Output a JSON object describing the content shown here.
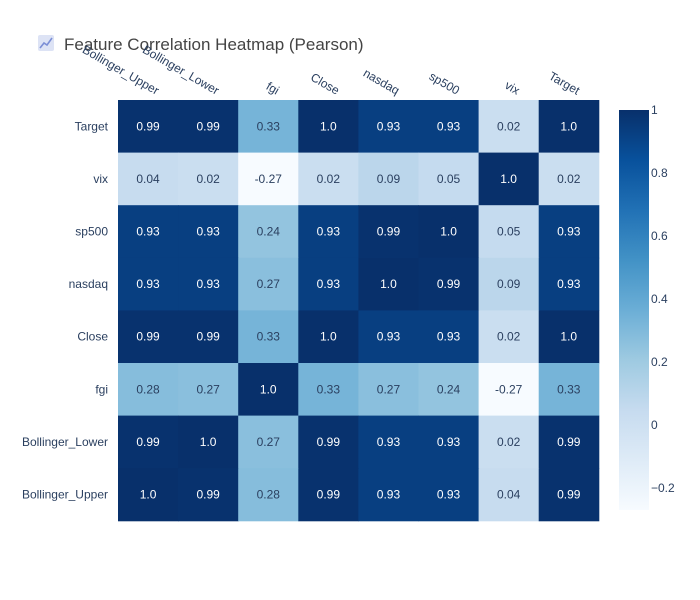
{
  "title": "Feature Correlation Heatmap (Pearson)",
  "logo_icon": "plotly-chart-icon",
  "chart_data": {
    "type": "heatmap",
    "title": "Feature Correlation Heatmap (Pearson)",
    "x": [
      "Bollinger_Upper",
      "Bollinger_Lower",
      "fgi",
      "Close",
      "nasdaq",
      "sp500",
      "vix",
      "Target"
    ],
    "y": [
      "Target",
      "vix",
      "sp500",
      "nasdaq",
      "Close",
      "fgi",
      "Bollinger_Lower",
      "Bollinger_Upper"
    ],
    "z": [
      [
        0.99,
        0.99,
        0.33,
        1.0,
        0.93,
        0.93,
        0.02,
        1.0
      ],
      [
        0.04,
        0.02,
        -0.27,
        0.02,
        0.09,
        0.05,
        1.0,
        0.02
      ],
      [
        0.93,
        0.93,
        0.24,
        0.93,
        0.99,
        1.0,
        0.05,
        0.93
      ],
      [
        0.93,
        0.93,
        0.27,
        0.93,
        1.0,
        0.99,
        0.09,
        0.93
      ],
      [
        0.99,
        0.99,
        0.33,
        1.0,
        0.93,
        0.93,
        0.02,
        1.0
      ],
      [
        0.28,
        0.27,
        1.0,
        0.33,
        0.27,
        0.24,
        -0.27,
        0.33
      ],
      [
        0.99,
        1.0,
        0.27,
        0.99,
        0.93,
        0.93,
        0.02,
        0.99
      ],
      [
        1.0,
        0.99,
        0.28,
        0.99,
        0.93,
        0.93,
        0.04,
        0.99
      ]
    ],
    "cell_labels": [
      [
        "0.99",
        "0.99",
        "0.33",
        "1.0",
        "0.93",
        "0.93",
        "0.02",
        "1.0"
      ],
      [
        "0.04",
        "0.02",
        "-0.27",
        "0.02",
        "0.09",
        "0.05",
        "1.0",
        "0.02"
      ],
      [
        "0.93",
        "0.93",
        "0.24",
        "0.93",
        "0.99",
        "1.0",
        "0.05",
        "0.93"
      ],
      [
        "0.93",
        "0.93",
        "0.27",
        "0.93",
        "1.0",
        "0.99",
        "0.09",
        "0.93"
      ],
      [
        "0.99",
        "0.99",
        "0.33",
        "1.0",
        "0.93",
        "0.93",
        "0.02",
        "1.0"
      ],
      [
        "0.28",
        "0.27",
        "1.0",
        "0.33",
        "0.27",
        "0.24",
        "-0.27",
        "0.33"
      ],
      [
        "0.99",
        "1.0",
        "0.27",
        "0.99",
        "0.93",
        "0.93",
        "0.02",
        "0.99"
      ],
      [
        "1.0",
        "0.99",
        "0.28",
        "0.99",
        "0.93",
        "0.93",
        "0.04",
        "0.99"
      ]
    ],
    "colorscale": "Blues",
    "zmin": -0.27,
    "zmax": 1.0,
    "colorbar_ticks": [
      1,
      0.8,
      0.6,
      0.4,
      0.2,
      0,
      -0.2
    ],
    "colorbar_tick_labels": [
      "1",
      "0.8",
      "0.6",
      "0.4",
      "0.2",
      "0",
      "−0.2"
    ],
    "x_axis_side": "top",
    "grid": false
  }
}
